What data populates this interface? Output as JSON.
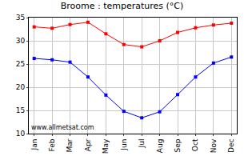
{
  "chart_data": {
    "type": "line",
    "title": "Broome : temperatures (°C)",
    "categories": [
      "Jan",
      "Feb",
      "Mar",
      "Apr",
      "May",
      "Jun",
      "Jul",
      "Aug",
      "Sep",
      "Oct",
      "Nov",
      "Dec"
    ],
    "series": [
      {
        "color": "#ff0000",
        "marker": "square",
        "values": [
          33.0,
          32.7,
          33.5,
          34.0,
          31.5,
          29.2,
          28.7,
          30.0,
          31.8,
          32.8,
          33.4,
          33.8
        ]
      },
      {
        "color": "#0000ff",
        "marker": "square",
        "values": [
          26.2,
          25.9,
          25.4,
          22.2,
          18.3,
          14.8,
          13.4,
          14.7,
          18.4,
          22.2,
          25.2,
          26.5
        ]
      }
    ],
    "ylim": [
      10,
      35
    ],
    "yticks": [
      10,
      15,
      20,
      25,
      30,
      35
    ],
    "grid": true,
    "annotations": [
      {
        "text": "www.allmetsat.com"
      }
    ]
  }
}
